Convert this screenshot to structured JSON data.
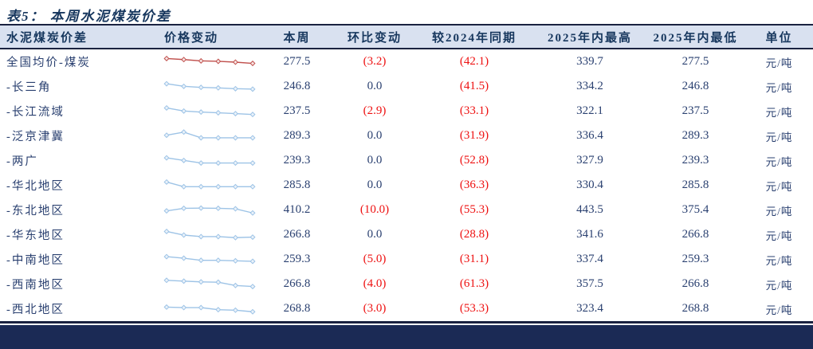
{
  "title": "表5：  本周水泥煤炭价差",
  "colors": {
    "accent_navy": "#17375E",
    "body_navy": "#2A4070",
    "negative_red": "#EE1111",
    "header_bg": "#D9E1F0",
    "spark_red": "#C0504D",
    "spark_blue": "#9DC3E6",
    "footer_bar": "#1B2A55"
  },
  "table": {
    "headers": [
      "水泥煤炭价差",
      "价格变动",
      "本周",
      "环比变动",
      "较2024年同期",
      "2025年内最高",
      "2025年内最低",
      "单位"
    ],
    "rows": [
      {
        "name": "全国均价-煤炭",
        "week": "277.5",
        "wow": "(3.2)",
        "yoy": "(42.1)",
        "high": "339.7",
        "low": "277.5",
        "unit": "元/吨",
        "spark": {
          "color": "#C0504D",
          "fill": "#F6E4E3",
          "points": [
            0.85,
            0.75,
            0.62,
            0.58,
            0.5,
            0.38
          ]
        }
      },
      {
        "name": "-长三角",
        "week": "246.8",
        "wow": "0.0",
        "yoy": "(41.5)",
        "high": "334.2",
        "low": "246.8",
        "unit": "元/吨",
        "spark": {
          "color": "#9DC3E6",
          "fill": "#EAF2FA",
          "points": [
            0.8,
            0.55,
            0.45,
            0.4,
            0.32,
            0.28
          ]
        }
      },
      {
        "name": "-长江流域",
        "week": "237.5",
        "wow": "(2.9)",
        "yoy": "(33.1)",
        "high": "322.1",
        "low": "237.5",
        "unit": "元/吨",
        "spark": {
          "color": "#9DC3E6",
          "fill": "#EAF2FA",
          "points": [
            0.85,
            0.55,
            0.45,
            0.38,
            0.3,
            0.22
          ]
        }
      },
      {
        "name": "-泛京津冀",
        "week": "289.3",
        "wow": "0.0",
        "yoy": "(31.9)",
        "high": "336.4",
        "low": "289.3",
        "unit": "元/吨",
        "spark": {
          "color": "#9DC3E6",
          "fill": "#EAF2FA",
          "points": [
            0.6,
            0.9,
            0.35,
            0.35,
            0.35,
            0.35
          ]
        }
      },
      {
        "name": "-两广",
        "week": "239.3",
        "wow": "0.0",
        "yoy": "(52.8)",
        "high": "327.9",
        "low": "239.3",
        "unit": "元/吨",
        "spark": {
          "color": "#9DC3E6",
          "fill": "#EAF2FA",
          "points": [
            0.8,
            0.55,
            0.3,
            0.3,
            0.3,
            0.3
          ]
        }
      },
      {
        "name": "-华北地区",
        "week": "285.8",
        "wow": "0.0",
        "yoy": "(36.3)",
        "high": "330.4",
        "low": "285.8",
        "unit": "元/吨",
        "spark": {
          "color": "#9DC3E6",
          "fill": "#EAF2FA",
          "points": [
            0.85,
            0.4,
            0.4,
            0.4,
            0.4,
            0.4
          ]
        }
      },
      {
        "name": "-东北地区",
        "week": "410.2",
        "wow": "(10.0)",
        "yoy": "(55.3)",
        "high": "443.5",
        "low": "375.4",
        "unit": "元/吨",
        "spark": {
          "color": "#9DC3E6",
          "fill": "#EAF2FA",
          "points": [
            0.45,
            0.7,
            0.72,
            0.7,
            0.65,
            0.25
          ]
        }
      },
      {
        "name": "-华东地区",
        "week": "266.8",
        "wow": "0.0",
        "yoy": "(28.8)",
        "high": "341.6",
        "low": "266.8",
        "unit": "元/吨",
        "spark": {
          "color": "#9DC3E6",
          "fill": "#EAF2FA",
          "points": [
            0.85,
            0.5,
            0.35,
            0.35,
            0.25,
            0.3
          ]
        }
      },
      {
        "name": "-中南地区",
        "week": "259.3",
        "wow": "(5.0)",
        "yoy": "(31.1)",
        "high": "337.4",
        "low": "259.3",
        "unit": "元/吨",
        "spark": {
          "color": "#9DC3E6",
          "fill": "#EAF2FA",
          "points": [
            0.8,
            0.65,
            0.45,
            0.45,
            0.4,
            0.35
          ]
        }
      },
      {
        "name": "-西南地区",
        "week": "266.8",
        "wow": "(4.0)",
        "yoy": "(61.3)",
        "high": "357.5",
        "low": "266.8",
        "unit": "元/吨",
        "spark": {
          "color": "#9DC3E6",
          "fill": "#EAF2FA",
          "points": [
            0.9,
            0.82,
            0.75,
            0.72,
            0.4,
            0.3
          ]
        }
      },
      {
        "name": "-西北地区",
        "week": "268.8",
        "wow": "(3.0)",
        "yoy": "(53.3)",
        "high": "323.4",
        "low": "268.8",
        "unit": "元/吨",
        "spark": {
          "color": "#9DC3E6",
          "fill": "#EAF2FA",
          "points": [
            0.7,
            0.65,
            0.65,
            0.45,
            0.4,
            0.25
          ]
        }
      }
    ]
  }
}
